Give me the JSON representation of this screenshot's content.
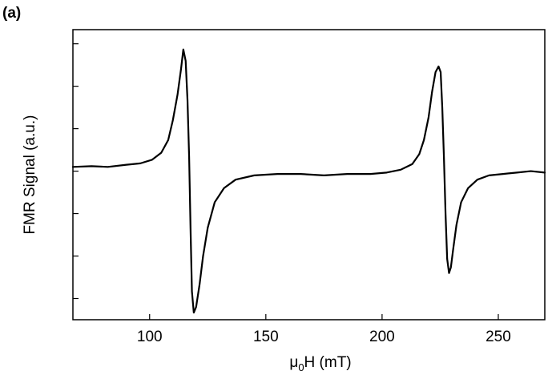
{
  "panel_label": "(a)",
  "chart_data": {
    "type": "line",
    "title": "",
    "xlabel_base": "μ",
    "xlabel_sub": "0",
    "xlabel_rest": "H (mT)",
    "ylabel": "FMR Signal (a.u.)",
    "xlim": [
      67,
      270
    ],
    "ylim": [
      -1.05,
      1.0
    ],
    "xticks": [
      100,
      150,
      200,
      250
    ],
    "xtick_labels": [
      "100",
      "150",
      "200",
      "250"
    ],
    "yticks": [
      0.9,
      0.6,
      0.3,
      0.0,
      -0.3,
      -0.6,
      -0.9
    ],
    "ytick_labels": [],
    "grid": false,
    "line_color": "#000000",
    "series": [
      {
        "x": [
          67,
          75,
          82,
          90,
          96,
          101,
          105,
          108,
          110,
          112,
          113.5,
          114.5,
          115.5,
          116.3,
          117,
          117.6,
          118.2,
          119,
          120,
          121.5,
          123,
          125,
          128,
          132,
          137,
          145,
          155,
          165,
          175,
          185,
          195,
          202,
          208,
          213,
          216,
          218,
          220,
          221.5,
          223,
          224.3,
          225.2,
          225.9,
          226.6,
          227.3,
          228,
          228.8,
          229.6,
          230.6,
          232,
          234,
          237,
          241,
          246,
          252,
          258,
          264,
          270
        ],
        "y": [
          0.03,
          0.035,
          0.03,
          0.045,
          0.055,
          0.08,
          0.13,
          0.22,
          0.36,
          0.54,
          0.72,
          0.86,
          0.78,
          0.5,
          0.1,
          -0.4,
          -0.85,
          -1.0,
          -0.96,
          -0.8,
          -0.6,
          -0.4,
          -0.22,
          -0.12,
          -0.06,
          -0.03,
          -0.02,
          -0.02,
          -0.03,
          -0.02,
          -0.02,
          -0.01,
          0.01,
          0.05,
          0.12,
          0.22,
          0.38,
          0.56,
          0.7,
          0.74,
          0.7,
          0.45,
          0.1,
          -0.3,
          -0.62,
          -0.72,
          -0.68,
          -0.55,
          -0.38,
          -0.22,
          -0.12,
          -0.06,
          -0.03,
          -0.02,
          -0.01,
          0.0,
          -0.01
        ]
      }
    ]
  }
}
